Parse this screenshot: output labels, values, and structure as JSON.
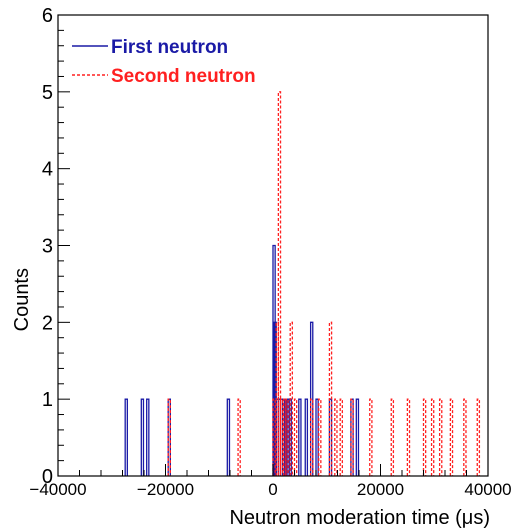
{
  "chart_data": {
    "type": "histogram",
    "xlabel": "Neutron moderation time (μs)",
    "ylabel": "Counts",
    "xlim": [
      -40000,
      40000
    ],
    "ylim": [
      0,
      6
    ],
    "x_ticks": [
      "−40000",
      "−20000",
      "0",
      "20000",
      "40000"
    ],
    "x_tick_values": [
      -40000,
      -20000,
      0,
      20000,
      40000
    ],
    "y_ticks": [
      "0",
      "1",
      "2",
      "3",
      "4",
      "5",
      "6"
    ],
    "y_tick_values": [
      0,
      1,
      2,
      3,
      4,
      5,
      6
    ],
    "legend_position": "top-left",
    "series": [
      {
        "name": "First neutron",
        "color": "#1a1aa6",
        "line_style": "solid",
        "bars": [
          {
            "x": -27500,
            "count": 1
          },
          {
            "x": -24500,
            "count": 1
          },
          {
            "x": -23500,
            "count": 1
          },
          {
            "x": -19500,
            "count": 1
          },
          {
            "x": -8500,
            "count": 1
          },
          {
            "x": 0,
            "count": 3
          },
          {
            "x": 200,
            "count": 2
          },
          {
            "x": 600,
            "count": 1
          },
          {
            "x": 1000,
            "count": 1
          },
          {
            "x": 1400,
            "count": 1
          },
          {
            "x": 1800,
            "count": 1
          },
          {
            "x": 2200,
            "count": 1
          },
          {
            "x": 2600,
            "count": 1
          },
          {
            "x": 3000,
            "count": 1
          },
          {
            "x": 4800,
            "count": 1
          },
          {
            "x": 6000,
            "count": 1
          },
          {
            "x": 7000,
            "count": 2
          },
          {
            "x": 8000,
            "count": 1
          },
          {
            "x": 10500,
            "count": 1
          },
          {
            "x": 14500,
            "count": 1
          },
          {
            "x": 15500,
            "count": 1
          }
        ]
      },
      {
        "name": "Second neutron",
        "color": "#ff2020",
        "line_style": "dashed",
        "bars": [
          {
            "x": -19500,
            "count": 1
          },
          {
            "x": -6500,
            "count": 1
          },
          {
            "x": 0,
            "count": 1
          },
          {
            "x": 600,
            "count": 2
          },
          {
            "x": 1000,
            "count": 5
          },
          {
            "x": 1400,
            "count": 1
          },
          {
            "x": 2000,
            "count": 1
          },
          {
            "x": 2400,
            "count": 1
          },
          {
            "x": 3200,
            "count": 2
          },
          {
            "x": 4000,
            "count": 1
          },
          {
            "x": 7000,
            "count": 1
          },
          {
            "x": 8500,
            "count": 1
          },
          {
            "x": 10500,
            "count": 2
          },
          {
            "x": 11500,
            "count": 1
          },
          {
            "x": 12500,
            "count": 1
          },
          {
            "x": 14500,
            "count": 1
          },
          {
            "x": 18000,
            "count": 1
          },
          {
            "x": 22000,
            "count": 1
          },
          {
            "x": 25000,
            "count": 1
          },
          {
            "x": 28000,
            "count": 1
          },
          {
            "x": 29500,
            "count": 1
          },
          {
            "x": 31000,
            "count": 1
          },
          {
            "x": 33000,
            "count": 1
          },
          {
            "x": 35500,
            "count": 1
          },
          {
            "x": 38000,
            "count": 1
          }
        ]
      }
    ]
  }
}
